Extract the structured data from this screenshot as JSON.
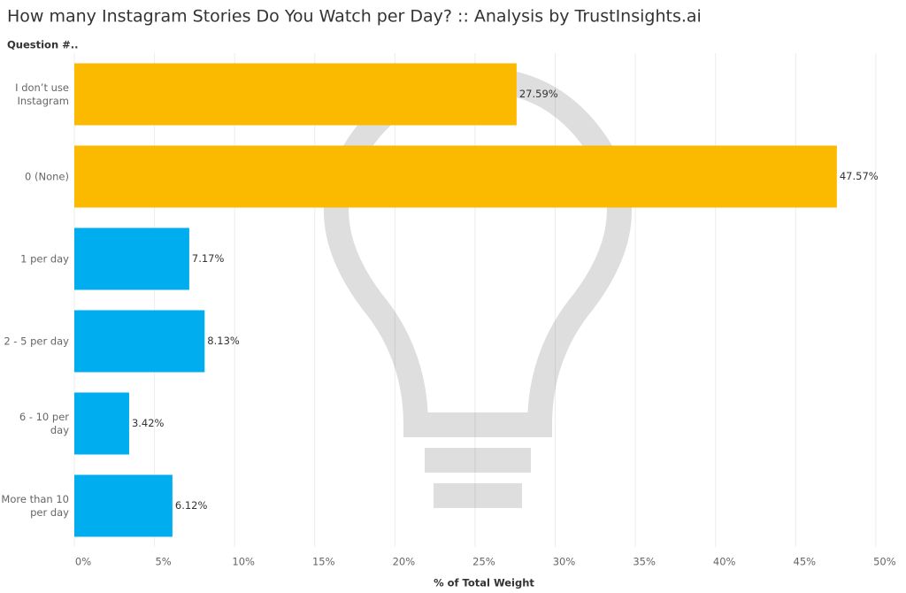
{
  "chart_data": {
    "type": "bar",
    "orientation": "horizontal",
    "title": "How many Instagram Stories Do You Watch per Day? :: Analysis by TrustInsights.ai",
    "y_axis_label": "Question #..",
    "x_axis_label": "% of Total Weight",
    "categories": [
      "I don’t use Instagram",
      "0 (None)",
      "1 per day",
      "2 - 5 per day",
      "6 - 10 per day",
      "More than 10 per day"
    ],
    "values": [
      27.59,
      47.57,
      7.17,
      8.13,
      3.42,
      6.12
    ],
    "value_labels": [
      "27.59%",
      "47.57%",
      "7.17%",
      "8.13%",
      "3.42%",
      "6.12%"
    ],
    "colors": [
      "#fbba00",
      "#fbba00",
      "#00aeef",
      "#00aeef",
      "#00aeef",
      "#00aeef"
    ],
    "xlim": [
      0,
      51
    ],
    "xticks": [
      {
        "value": 0,
        "label": "0%"
      },
      {
        "value": 5,
        "label": "5%"
      },
      {
        "value": 10,
        "label": "10%"
      },
      {
        "value": 15,
        "label": "15%"
      },
      {
        "value": 20,
        "label": "20%"
      },
      {
        "value": 25,
        "label": "25%"
      },
      {
        "value": 30,
        "label": "30%"
      },
      {
        "value": 35,
        "label": "35%"
      },
      {
        "value": 40,
        "label": "40%"
      },
      {
        "value": 45,
        "label": "45%"
      },
      {
        "value": 50,
        "label": "50%"
      }
    ],
    "grid": true
  }
}
